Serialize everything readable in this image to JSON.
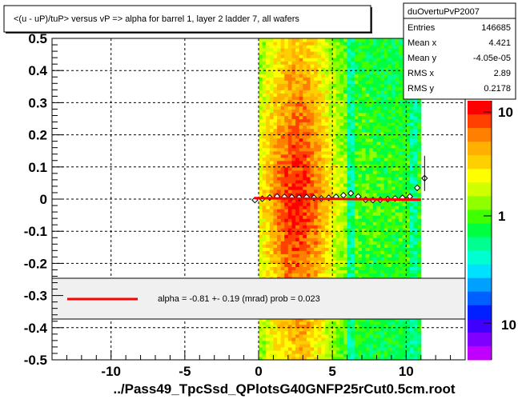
{
  "chart_data": {
    "type": "heatmap",
    "title": "<(u - uP)/tuP> versus   vP => alpha for barrel 1, layer 2 ladder 7, all wafers",
    "xlabel": "../Pass49_TpcSsd_QPlotsG40GNFP25rCut0.5cm.root",
    "ylabel": "",
    "xlim": [
      -14.0,
      14.0
    ],
    "ylim": [
      -0.5,
      0.5
    ],
    "x_ticks": [
      -10,
      -5,
      0,
      5,
      10
    ],
    "x_tick_labels": [
      "-10",
      "-5",
      "0",
      "5",
      "10"
    ],
    "y_ticks": [
      -0.5,
      -0.4,
      -0.3,
      -0.2,
      -0.1,
      0,
      0.1,
      0.2,
      0.3,
      0.4,
      0.5
    ],
    "y_tick_labels": [
      "-0.5",
      "-0.4",
      "-0.3",
      "-0.2",
      "-0.1",
      "0",
      "0.1",
      "0.2",
      "0.3",
      "0.4",
      "0.5"
    ],
    "grid": true,
    "occupied_x_range": [
      0.0,
      11.0
    ],
    "gap_columns_x": [
      6.3,
      10.5
    ],
    "colorbar": {
      "scale": "log",
      "tick_labels": [
        "10",
        "1",
        "10"
      ],
      "colors": [
        "#ff0000",
        "#ff4000",
        "#ff8000",
        "#ffb000",
        "#ffd000",
        "#ffff00",
        "#d0ff00",
        "#90ff00",
        "#40ff00",
        "#00ff40",
        "#00ff90",
        "#00ffd0",
        "#00e0ff",
        "#00a0ff",
        "#0060ff",
        "#0020ff",
        "#4000ff",
        "#8000ff",
        "#c000ff"
      ]
    },
    "stats": {
      "name": "duOvertuPvP2007",
      "rows": [
        {
          "label": "Entries",
          "value": "146685"
        },
        {
          "label": "Mean x",
          "value": "4.421"
        },
        {
          "label": "Mean y",
          "value": "-4.05e-05"
        },
        {
          "label": "RMS x",
          "value": "2.89"
        },
        {
          "label": "RMS y",
          "value": "0.2178"
        }
      ]
    },
    "fit_legend": "alpha =   -0.81 +-  0.19 (mrad) prob = 0.023",
    "profile": {
      "x": [
        -0.25,
        0.25,
        0.75,
        1.25,
        1.75,
        2.25,
        2.75,
        3.25,
        3.75,
        4.25,
        4.75,
        5.25,
        5.75,
        6.25,
        6.75,
        7.25,
        7.75,
        8.25,
        8.75,
        9.25,
        9.75,
        10.25,
        10.75,
        11.25
      ],
      "y": [
        -0.003,
        0.001,
        0.005,
        0.008,
        0.007,
        0.006,
        0.005,
        0.006,
        0.004,
        0.002,
        0.004,
        0.007,
        0.012,
        0.018,
        0.008,
        -0.002,
        -0.003,
        -0.002,
        0.0,
        0.002,
        0.004,
        0.008,
        0.035,
        0.065
      ]
    },
    "fit_line": {
      "x": [
        -0.3,
        11.0
      ],
      "y": [
        0.003,
        -0.002
      ]
    }
  }
}
